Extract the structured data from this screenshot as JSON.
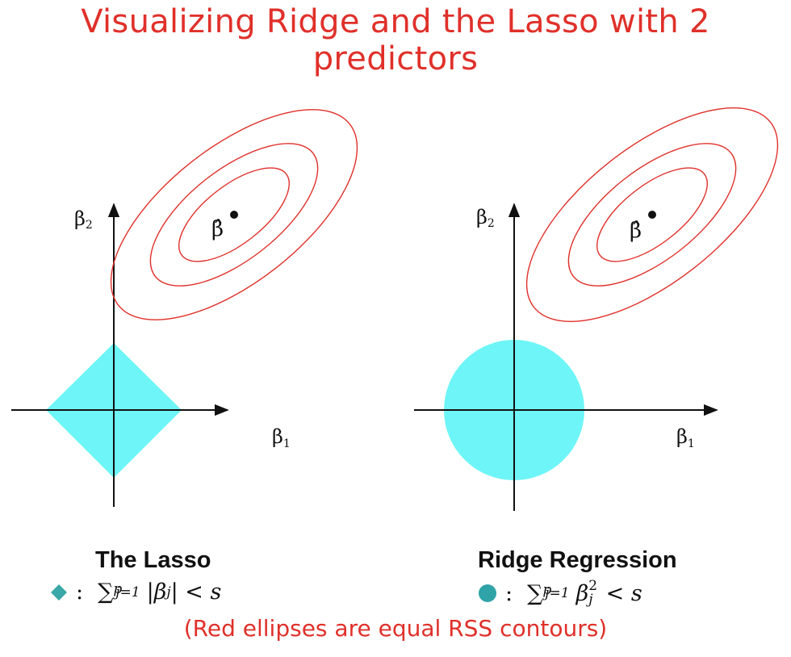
{
  "title": "Visualizing Ridge and the Lasso with 2 predictors",
  "panels": {
    "lasso": {
      "name": "The Lasso",
      "y_axis_label": "β",
      "y_axis_sub": "2",
      "x_axis_label": "β",
      "x_axis_sub": "1",
      "estimate_label": "β̂",
      "constraint_shape": "diamond",
      "formula": {
        "sum": "∑",
        "sub": "j=1",
        "sup": "p",
        "body": "|β",
        "body_sub": "j",
        "body_end": "| < s"
      }
    },
    "ridge": {
      "name": "Ridge Regression",
      "y_axis_label": "β",
      "y_axis_sub": "2",
      "x_axis_label": "β",
      "x_axis_sub": "1",
      "estimate_label": "β̂",
      "constraint_shape": "circle",
      "formula": {
        "sum": "∑",
        "sub": "j=1",
        "sup": "p",
        "body": "β",
        "body_sup": "2",
        "body_sub": "j",
        "body_end": " < s"
      }
    }
  },
  "footer": "(Red ellipses are equal RSS contours)",
  "colors": {
    "title": "#e0302a",
    "contour": "#e0302a",
    "constraint": "#6ef5f7",
    "lasso_marker": "#3aa7a8",
    "ridge_marker": "#2fa3a8"
  }
}
